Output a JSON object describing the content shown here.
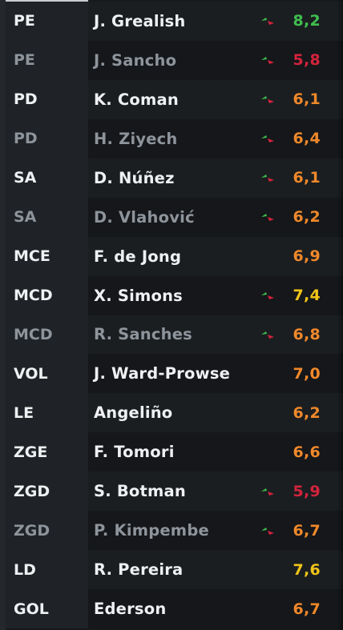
{
  "rows": [
    {
      "position": "PE",
      "player": "J. Grealish",
      "rating": "8,2",
      "rating_color": "#3fbf4f",
      "trend": true,
      "substitute": false
    },
    {
      "position": "PE",
      "player": "J. Sancho",
      "rating": "5,8",
      "rating_color": "#d3233c",
      "trend": true,
      "substitute": true
    },
    {
      "position": "PD",
      "player": "K. Coman",
      "rating": "6,1",
      "rating_color": "#f0882a",
      "trend": true,
      "substitute": false
    },
    {
      "position": "PD",
      "player": "H. Ziyech",
      "rating": "6,4",
      "rating_color": "#f0882a",
      "trend": true,
      "substitute": true
    },
    {
      "position": "SA",
      "player": "D. Núñez",
      "rating": "6,1",
      "rating_color": "#f0882a",
      "trend": true,
      "substitute": false
    },
    {
      "position": "SA",
      "player": "D. Vlahović",
      "rating": "6,2",
      "rating_color": "#f0882a",
      "trend": true,
      "substitute": true
    },
    {
      "position": "MCE",
      "player": "F. de Jong",
      "rating": "6,9",
      "rating_color": "#f0882a",
      "trend": false,
      "substitute": false
    },
    {
      "position": "MCD",
      "player": "X. Simons",
      "rating": "7,4",
      "rating_color": "#f0c419",
      "trend": true,
      "substitute": false
    },
    {
      "position": "MCD",
      "player": "R. Sanches",
      "rating": "6,8",
      "rating_color": "#f0882a",
      "trend": true,
      "substitute": true
    },
    {
      "position": "VOL",
      "player": "J. Ward-Prowse",
      "rating": "7,0",
      "rating_color": "#f0882a",
      "trend": false,
      "substitute": false
    },
    {
      "position": "LE",
      "player": "Angeliño",
      "rating": "6,2",
      "rating_color": "#f0882a",
      "trend": false,
      "substitute": false
    },
    {
      "position": "ZGE",
      "player": "F. Tomori",
      "rating": "6,6",
      "rating_color": "#f0882a",
      "trend": false,
      "substitute": false
    },
    {
      "position": "ZGD",
      "player": "S. Botman",
      "rating": "5,9",
      "rating_color": "#d3233c",
      "trend": true,
      "substitute": false
    },
    {
      "position": "ZGD",
      "player": "P. Kimpembe",
      "rating": "6,7",
      "rating_color": "#f0882a",
      "trend": true,
      "substitute": true
    },
    {
      "position": "LD",
      "player": "R. Pereira",
      "rating": "7,6",
      "rating_color": "#f0c419",
      "trend": false,
      "substitute": false
    },
    {
      "position": "GOL",
      "player": "Ederson",
      "rating": "6,7",
      "rating_color": "#f0882a",
      "trend": false,
      "substitute": false
    }
  ],
  "colors": {
    "trend_green": "#3fbf4f",
    "trend_red": "#d3233c"
  }
}
